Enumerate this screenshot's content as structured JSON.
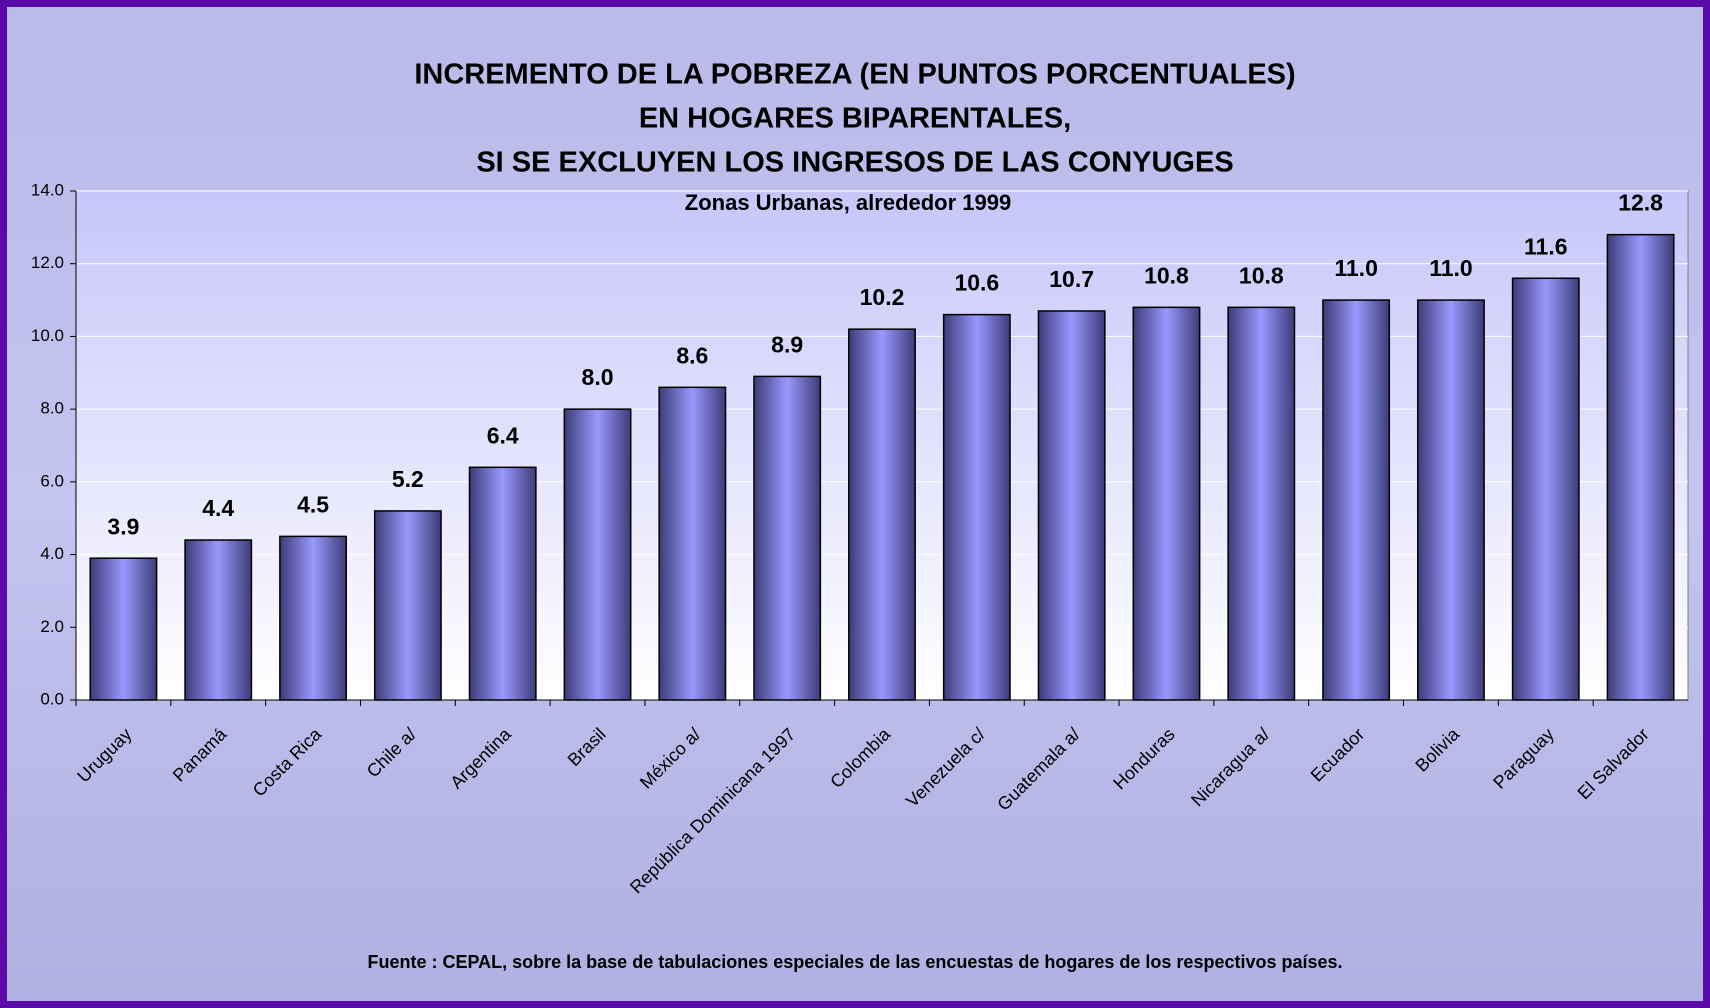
{
  "chart_data": {
    "type": "bar",
    "title": [
      "INCREMENTO  DE LA POBREZA (EN PUNTOS PORCENTUALES)",
      "EN HOGARES BIPARENTALES,",
      "SI SE EXCLUYEN LOS INGRESOS DE LAS CONYUGES"
    ],
    "subtitle": "Zonas Urbanas, alrededor 1999",
    "source": "Fuente : CEPAL, sobre la base de tabulaciones especiales de las encuestas de hogares de los respectivos países.",
    "categories": [
      "Uruguay",
      "Panamá",
      "Costa Rica",
      "Chile a/",
      "Argentina",
      "Brasil",
      "México a/",
      "República Dominicana 1997",
      "Colombia",
      "Venezuela c/",
      "Guatemala a/",
      "Honduras",
      "Nicaragua a/",
      "Ecuador",
      "Bolivia",
      "Paraguay",
      "El Salvador"
    ],
    "values": [
      3.9,
      4.4,
      4.5,
      5.2,
      6.4,
      8.0,
      8.6,
      8.9,
      10.2,
      10.6,
      10.7,
      10.8,
      10.8,
      11.0,
      11.0,
      11.6,
      12.8
    ],
    "value_labels": [
      "3.9",
      "4.4",
      "4.5",
      "5.2",
      "6.4",
      "8.0",
      "8.6",
      "8.9",
      "10.2",
      "10.6",
      "10.7",
      "10.8",
      "10.8",
      "11.0",
      "11.0",
      "11.6",
      "12.8"
    ],
    "color": "#9999ff",
    "ylim": [
      0,
      14
    ],
    "yticks": [
      {
        "value": 0,
        "label": "0.0"
      },
      {
        "value": 2,
        "label": "2.0"
      },
      {
        "value": 4,
        "label": "4.0"
      },
      {
        "value": 6,
        "label": "6.0"
      },
      {
        "value": 8,
        "label": "8.0"
      },
      {
        "value": 10,
        "label": "10.0"
      },
      {
        "value": 12,
        "label": "12.0"
      },
      {
        "value": 14,
        "label": "14.0"
      }
    ],
    "grid": true
  }
}
